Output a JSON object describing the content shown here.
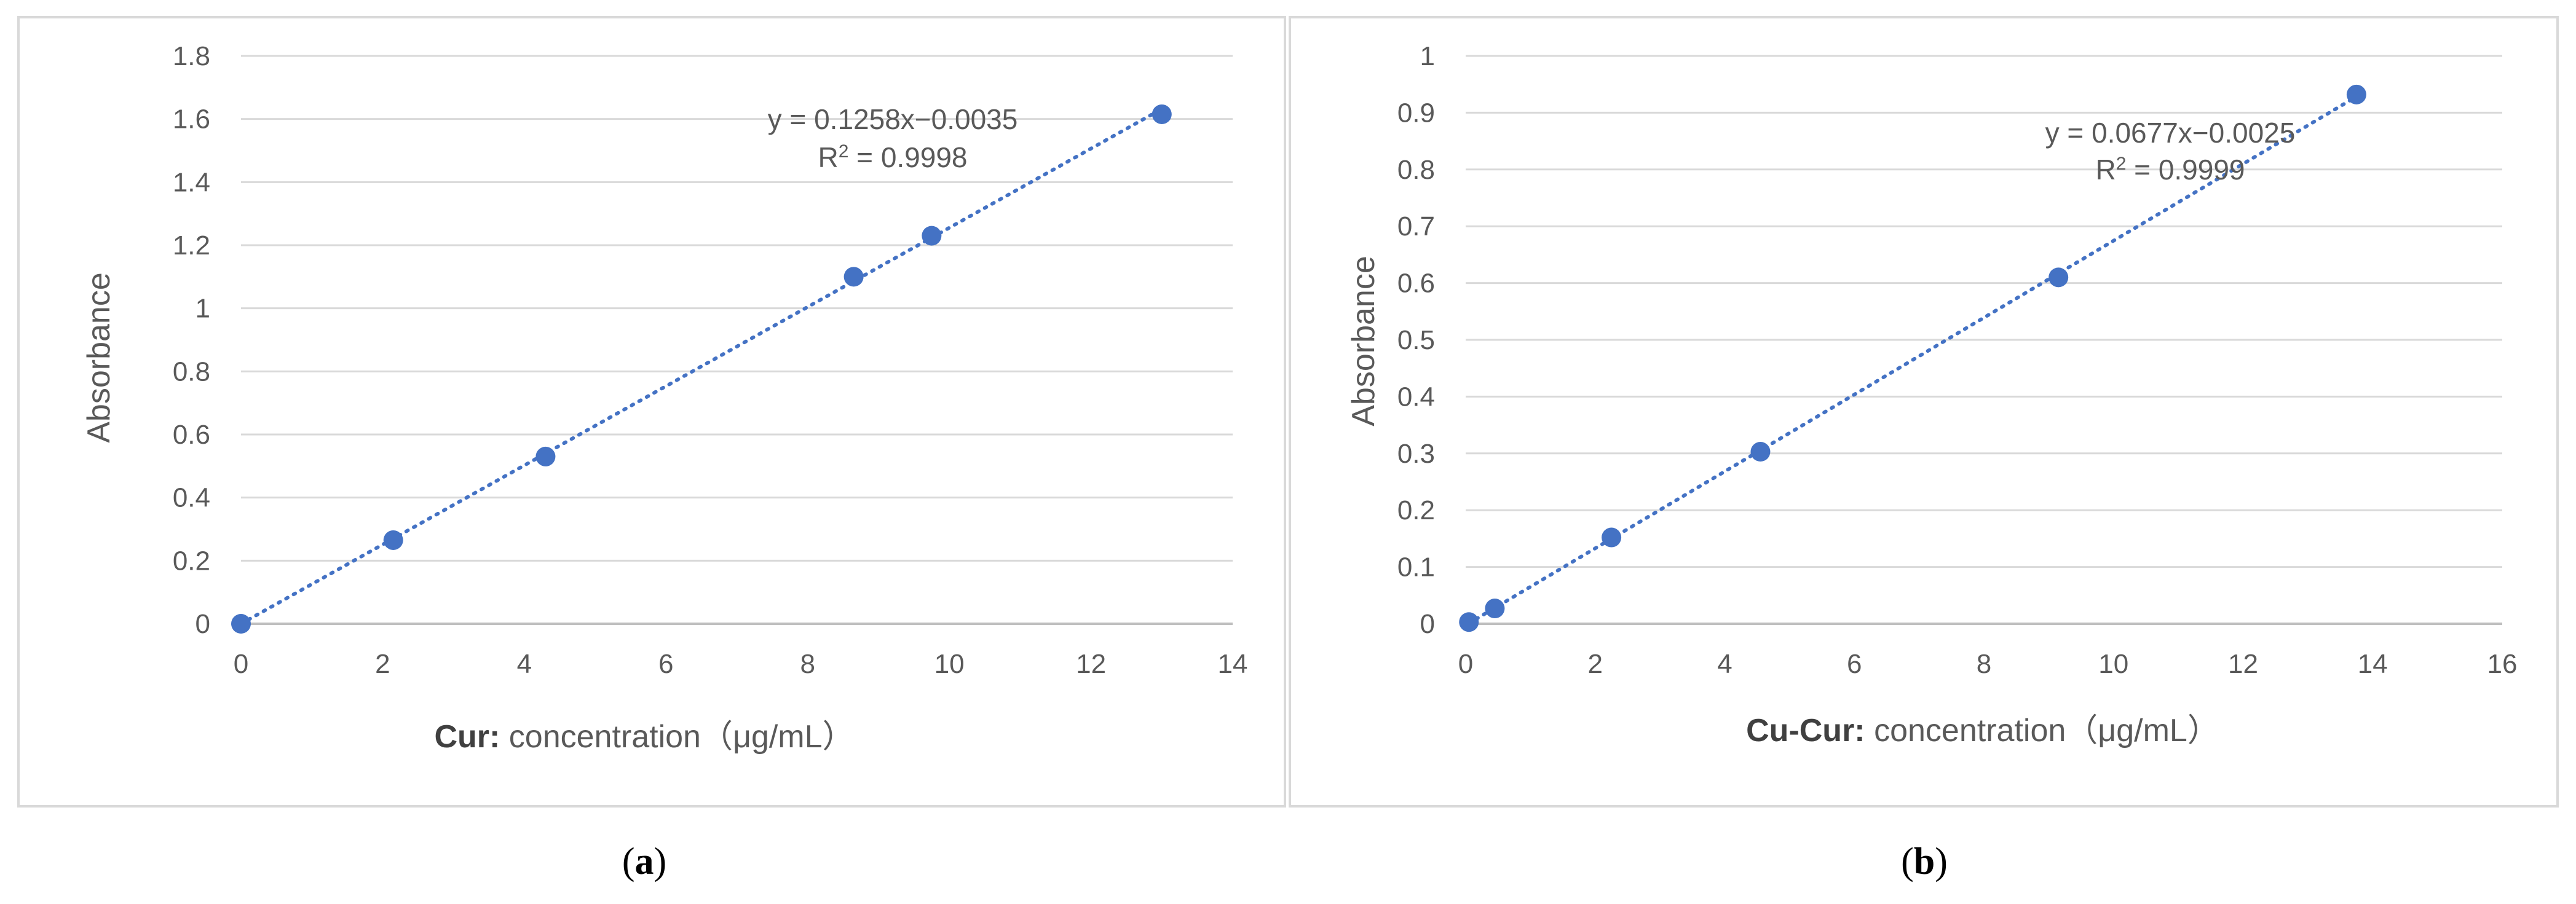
{
  "figure": {
    "panel_a_caption": "a",
    "panel_b_caption": "b"
  },
  "chart_data": [
    {
      "type": "scatter",
      "panel": "a",
      "xlabel_bold": "Cur:",
      "xlabel_rest": " concentration（μg/mL）",
      "ylabel": "Absorbance",
      "xlim": [
        0,
        14
      ],
      "ylim": [
        0,
        1.8
      ],
      "xticks": [
        "0",
        "2",
        "4",
        "6",
        "8",
        "10",
        "12",
        "14"
      ],
      "yticks": [
        "0",
        "0.2",
        "0.4",
        "0.6",
        "0.8",
        "1",
        "1.2",
        "1.4",
        "1.6",
        "1.8"
      ],
      "grid": "horizontal",
      "marker_color": "#4472C4",
      "trendline": {
        "type": "linear",
        "slope": 0.1258,
        "intercept": -0.0035,
        "style": "dotted"
      },
      "equation": "y = 0.1258x−0.0035",
      "r2_prefix": "R",
      "r2_sup": "2",
      "r2_value": " = 0.9998",
      "x": [
        0,
        2.15,
        4.3,
        8.65,
        9.75,
        13.0
      ],
      "y": [
        0,
        0.265,
        0.53,
        1.1,
        1.23,
        1.615
      ]
    },
    {
      "type": "scatter",
      "panel": "b",
      "xlabel_bold": "Cu-Cur:",
      "xlabel_rest": " concentration（μg/mL）",
      "ylabel": "Absorbance",
      "xlim": [
        0,
        16
      ],
      "ylim": [
        0,
        1
      ],
      "xticks": [
        "0",
        "2",
        "4",
        "6",
        "8",
        "10",
        "12",
        "14",
        "16"
      ],
      "yticks": [
        "0",
        "0.1",
        "0.2",
        "0.3",
        "0.4",
        "0.5",
        "0.6",
        "0.7",
        "0.8",
        "0.9",
        "1"
      ],
      "grid": "horizontal",
      "marker_color": "#4472C4",
      "trendline": {
        "type": "linear",
        "slope": 0.0677,
        "intercept": -0.0025,
        "style": "dotted"
      },
      "equation": "y = 0.0677x−0.0025",
      "r2_prefix": "R",
      "r2_sup": "2",
      "r2_value": " = 0.9999",
      "x": [
        0.05,
        0.45,
        2.25,
        4.55,
        9.15,
        13.75
      ],
      "y": [
        0.003,
        0.027,
        0.152,
        0.303,
        0.61,
        0.932
      ]
    }
  ]
}
